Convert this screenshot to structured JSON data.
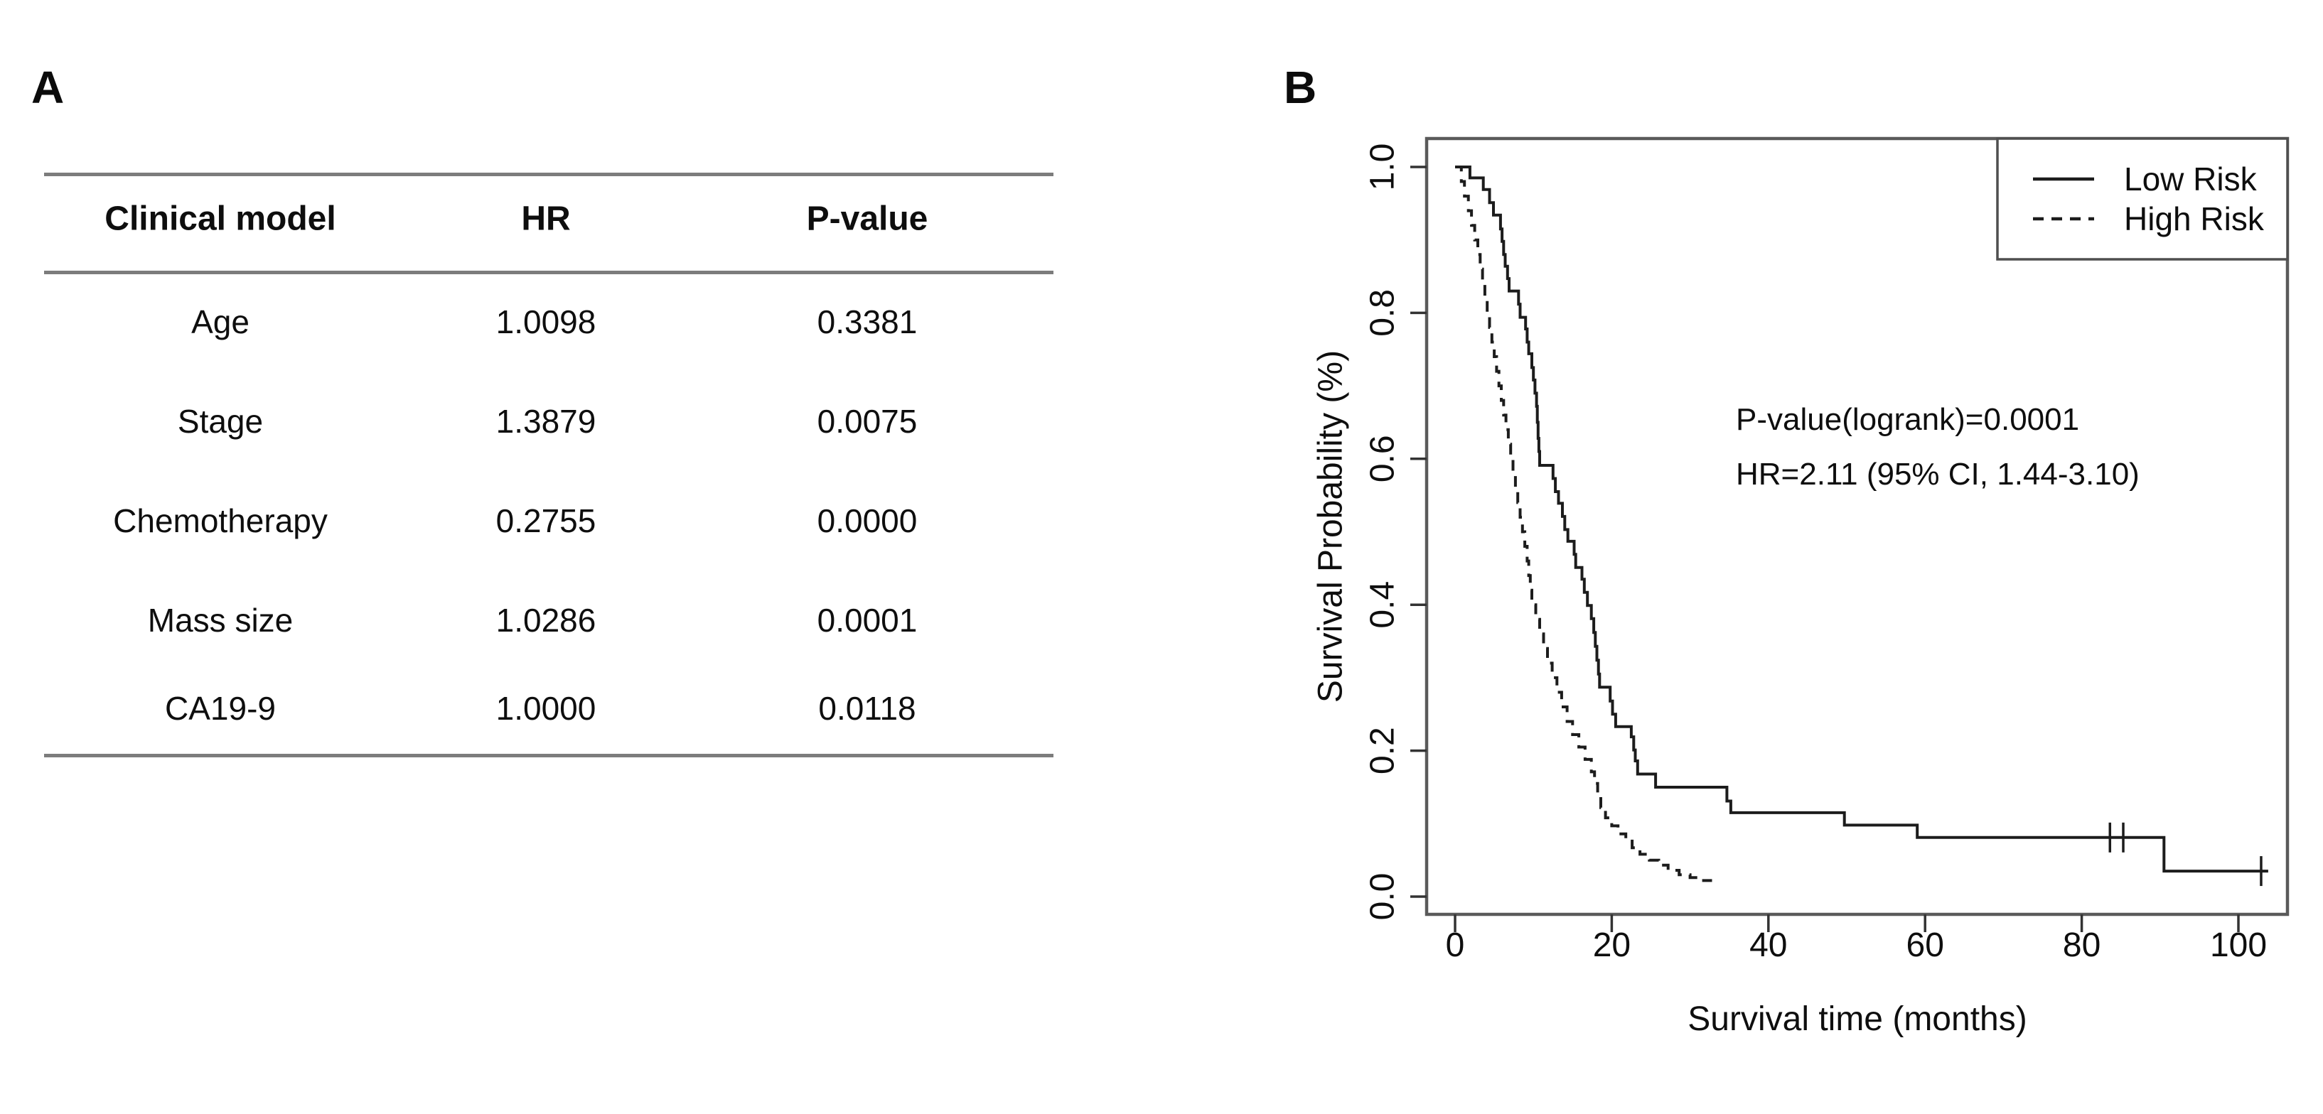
{
  "figure": {
    "panel_a": {
      "label": "A",
      "table": {
        "headers": [
          "Clinical model",
          "HR",
          "P-value"
        ],
        "rows": [
          [
            "Age",
            "1.0098",
            "0.3381"
          ],
          [
            "Stage",
            "1.3879",
            "0.0075"
          ],
          [
            "Chemotherapy",
            "0.2755",
            "0.0000"
          ],
          [
            "Mass size",
            "1.0286",
            "0.0001"
          ],
          [
            "CA19-9",
            "1.0000",
            "0.0118"
          ]
        ]
      }
    },
    "panel_b": {
      "label": "B"
    }
  },
  "chart_data": {
    "type": "line",
    "subtype": "kaplan-meier-survival-curve",
    "title": "",
    "xlabel": "Survival time (months)",
    "ylabel": "Survival Probability (%)",
    "xticks": [
      0,
      20,
      40,
      60,
      80,
      100
    ],
    "yticks": [
      "0.0",
      "0.2",
      "0.4",
      "0.6",
      "0.8",
      "1.0"
    ],
    "xlim": [
      -4,
      106
    ],
    "ylim": [
      -0.02,
      1.04
    ],
    "grid": false,
    "legend_position": "top-right",
    "line_color": "#1c1c1c",
    "frame_color": "#5a5a5a",
    "annotations": [
      "P-value(logrank)=0.0001",
      "HR=2.11 (95% CI, 1.44-3.10)"
    ],
    "legend": [
      {
        "label": "Low Risk",
        "line_style": "solid"
      },
      {
        "label": "High Risk",
        "line_style": "dashed"
      }
    ],
    "series": [
      {
        "name": "Low Risk",
        "style": "solid",
        "end_time": 103.8,
        "censor_marks": [
          [
            83.6,
            0.081
          ],
          [
            85.3,
            0.081
          ],
          [
            102.9,
            0.035
          ]
        ],
        "steps": [
          [
            0,
            1.0
          ],
          [
            1.9,
            0.985
          ],
          [
            3.6,
            0.969
          ],
          [
            4.4,
            0.951
          ],
          [
            4.9,
            0.934
          ],
          [
            5.8,
            0.915
          ],
          [
            6.0,
            0.898
          ],
          [
            6.2,
            0.88
          ],
          [
            6.4,
            0.864
          ],
          [
            6.7,
            0.847
          ],
          [
            6.9,
            0.83
          ],
          [
            8.1,
            0.812
          ],
          [
            8.3,
            0.794
          ],
          [
            9.0,
            0.778
          ],
          [
            9.2,
            0.76
          ],
          [
            9.4,
            0.744
          ],
          [
            9.8,
            0.725
          ],
          [
            10.0,
            0.708
          ],
          [
            10.2,
            0.69
          ],
          [
            10.4,
            0.672
          ],
          [
            10.5,
            0.65
          ],
          [
            10.6,
            0.628
          ],
          [
            10.7,
            0.61
          ],
          [
            10.8,
            0.591
          ],
          [
            12.5,
            0.573
          ],
          [
            12.8,
            0.555
          ],
          [
            13.2,
            0.539
          ],
          [
            13.7,
            0.521
          ],
          [
            14.0,
            0.503
          ],
          [
            14.4,
            0.487
          ],
          [
            15.2,
            0.469
          ],
          [
            15.4,
            0.451
          ],
          [
            16.2,
            0.435
          ],
          [
            16.5,
            0.417
          ],
          [
            16.9,
            0.399
          ],
          [
            17.4,
            0.381
          ],
          [
            17.7,
            0.362
          ],
          [
            17.9,
            0.343
          ],
          [
            18.1,
            0.324
          ],
          [
            18.3,
            0.305
          ],
          [
            18.45,
            0.287
          ],
          [
            19.8,
            0.268
          ],
          [
            20.1,
            0.25
          ],
          [
            20.5,
            0.233
          ],
          [
            22.5,
            0.219
          ],
          [
            22.8,
            0.201
          ],
          [
            23.0,
            0.186
          ],
          [
            23.3,
            0.168
          ],
          [
            25.6,
            0.15
          ],
          [
            34.7,
            0.131
          ],
          [
            35.2,
            0.115
          ],
          [
            49.7,
            0.098
          ],
          [
            59.0,
            0.081
          ],
          [
            90.5,
            0.035
          ]
        ]
      },
      {
        "name": "High Risk",
        "style": "dashed",
        "end_time": 32.8,
        "censor_marks": [],
        "steps": [
          [
            0,
            1.0
          ],
          [
            0.8,
            0.98
          ],
          [
            1.2,
            0.96
          ],
          [
            1.7,
            0.94
          ],
          [
            2.1,
            0.92
          ],
          [
            2.5,
            0.9
          ],
          [
            2.9,
            0.88
          ],
          [
            3.2,
            0.86
          ],
          [
            3.5,
            0.84
          ],
          [
            3.8,
            0.82
          ],
          [
            4.1,
            0.8
          ],
          [
            4.4,
            0.78
          ],
          [
            4.7,
            0.76
          ],
          [
            5.0,
            0.74
          ],
          [
            5.3,
            0.72
          ],
          [
            5.6,
            0.7
          ],
          [
            5.9,
            0.68
          ],
          [
            6.2,
            0.66
          ],
          [
            6.5,
            0.64
          ],
          [
            6.8,
            0.62
          ],
          [
            7.1,
            0.6
          ],
          [
            7.4,
            0.58
          ],
          [
            7.7,
            0.56
          ],
          [
            8.0,
            0.54
          ],
          [
            8.3,
            0.52
          ],
          [
            8.6,
            0.5
          ],
          [
            8.9,
            0.48
          ],
          [
            9.2,
            0.46
          ],
          [
            9.4,
            0.44
          ],
          [
            9.6,
            0.42
          ],
          [
            9.8,
            0.4
          ],
          [
            10.3,
            0.38
          ],
          [
            10.8,
            0.36
          ],
          [
            11.3,
            0.34
          ],
          [
            11.8,
            0.32
          ],
          [
            12.4,
            0.3
          ],
          [
            13.0,
            0.28
          ],
          [
            13.6,
            0.26
          ],
          [
            14.3,
            0.24
          ],
          [
            15.0,
            0.222
          ],
          [
            15.8,
            0.205
          ],
          [
            16.6,
            0.188
          ],
          [
            17.4,
            0.171
          ],
          [
            17.8,
            0.155
          ],
          [
            18.2,
            0.138
          ],
          [
            18.6,
            0.122
          ],
          [
            19.2,
            0.108
          ],
          [
            20.0,
            0.097
          ],
          [
            20.8,
            0.086
          ],
          [
            21.8,
            0.076
          ],
          [
            22.6,
            0.067
          ],
          [
            23.6,
            0.058
          ],
          [
            24.8,
            0.05
          ],
          [
            26.0,
            0.043
          ],
          [
            27.2,
            0.036
          ],
          [
            28.6,
            0.03
          ],
          [
            30.0,
            0.026
          ],
          [
            31.4,
            0.022
          ]
        ]
      }
    ]
  }
}
